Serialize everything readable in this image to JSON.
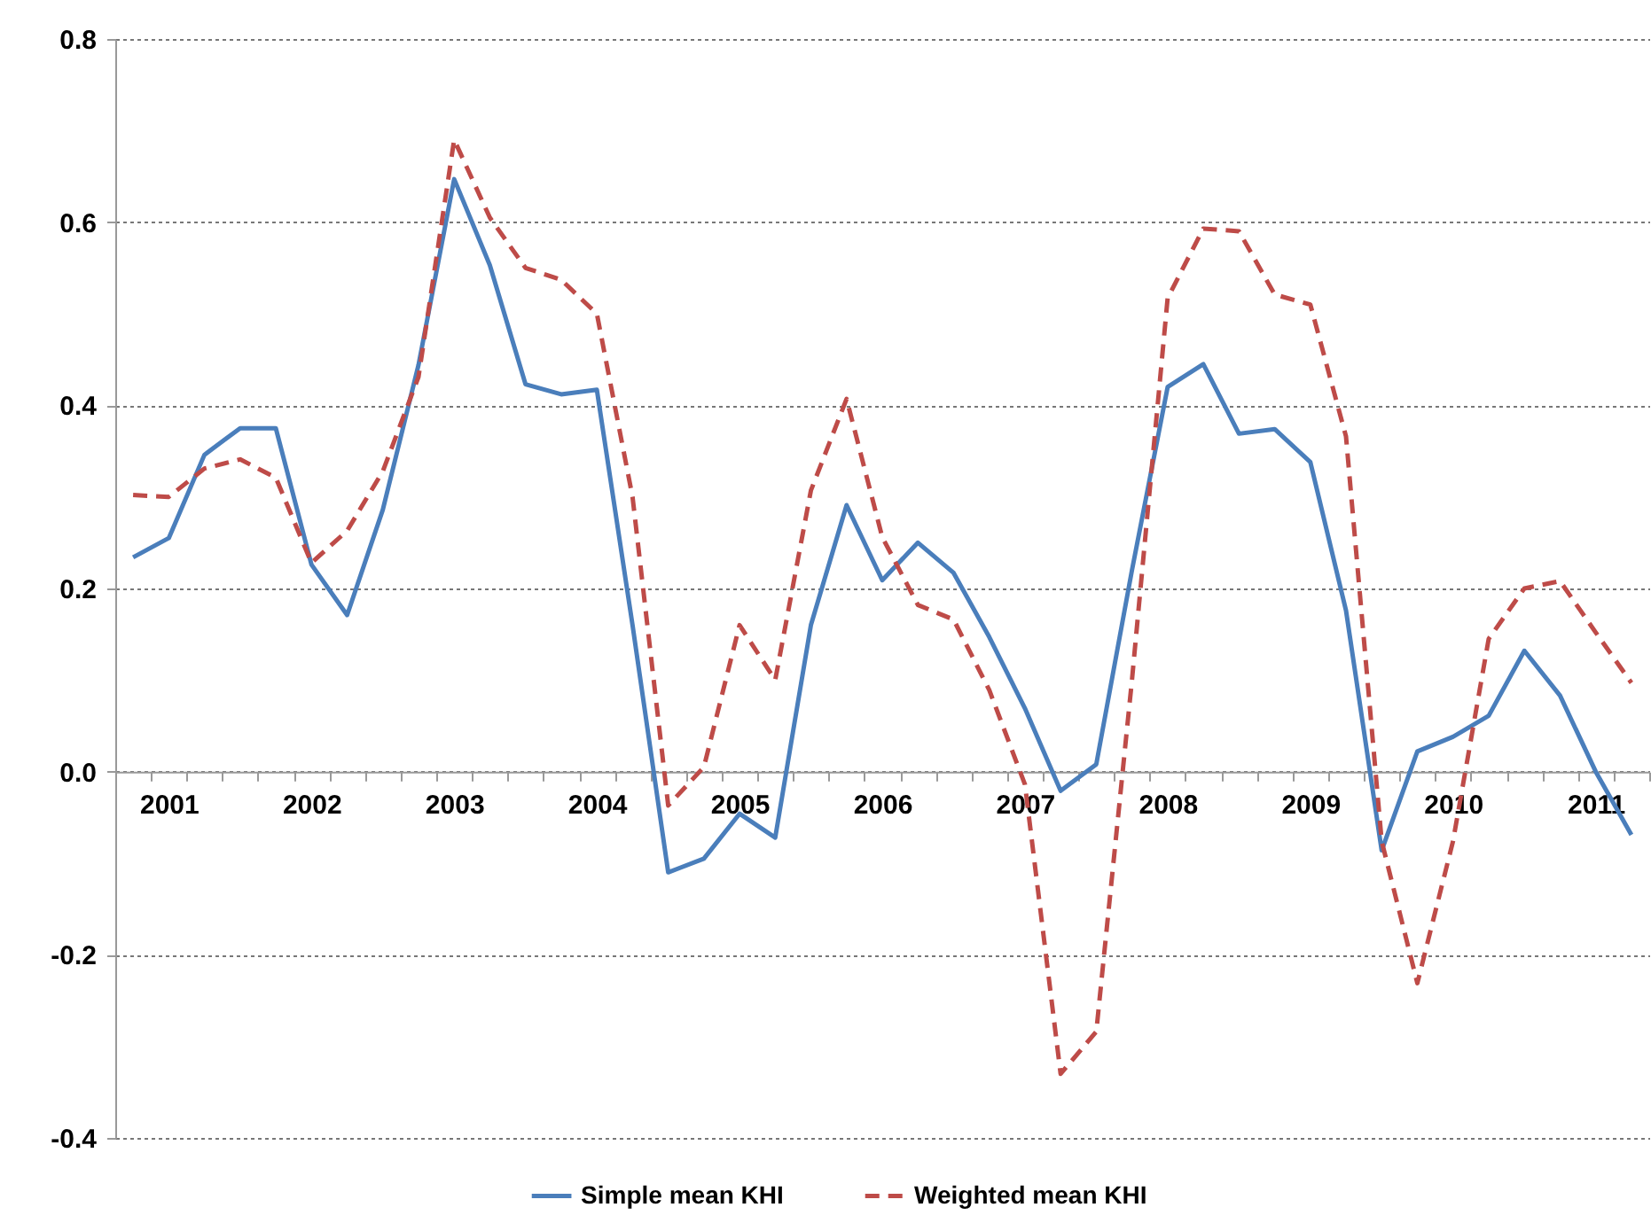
{
  "chart_data": {
    "type": "line",
    "categories": [
      null,
      "2001",
      null,
      null,
      null,
      "2002",
      null,
      null,
      null,
      "2003",
      null,
      null,
      null,
      "2004",
      null,
      null,
      null,
      "2005",
      null,
      null,
      null,
      "2006",
      null,
      null,
      null,
      "2007",
      null,
      null,
      null,
      "2008",
      null,
      null,
      null,
      "2009",
      null,
      null,
      null,
      "2010",
      null,
      null,
      null,
      "2011",
      null
    ],
    "series": [
      {
        "name": "Simple mean KHI",
        "color": "#4a7ebb",
        "line_style": "solid",
        "values": [
          0.234,
          0.255,
          0.346,
          0.375,
          0.375,
          0.226,
          0.171,
          0.286,
          0.444,
          0.647,
          0.553,
          0.423,
          0.412,
          0.417,
          0.16,
          -0.11,
          -0.095,
          -0.046,
          -0.072,
          0.16,
          0.291,
          0.209,
          0.25,
          0.217,
          0.147,
          0.069,
          -0.021,
          0.008,
          0.22,
          0.42,
          0.445,
          0.369,
          0.374,
          0.338,
          0.176,
          -0.086,
          0.022,
          0.038,
          0.061,
          0.132,
          0.083,
          0.0,
          -0.069
        ]
      },
      {
        "name": "Weighted mean KHI",
        "color": "#be4b48",
        "line_style": "dashed",
        "values": [
          0.302,
          0.3,
          0.331,
          0.341,
          0.321,
          0.228,
          0.263,
          0.328,
          0.431,
          0.69,
          0.605,
          0.55,
          0.537,
          0.5,
          0.3,
          -0.037,
          0.005,
          0.16,
          0.1,
          0.307,
          0.407,
          0.256,
          0.182,
          0.166,
          0.089,
          -0.014,
          -0.33,
          -0.284,
          0.1,
          0.517,
          0.593,
          0.59,
          0.521,
          0.51,
          0.366,
          -0.076,
          -0.231,
          -0.076,
          0.145,
          0.2,
          0.208,
          0.152,
          0.097
        ]
      }
    ],
    "ylim": [
      -0.4,
      0.8
    ],
    "yticks": [
      -0.4,
      -0.2,
      {
        "value": 0,
        "label": "0.0"
      },
      0.2,
      0.4,
      0.6,
      0.8
    ],
    "grid": "y",
    "legend": "bottom"
  }
}
